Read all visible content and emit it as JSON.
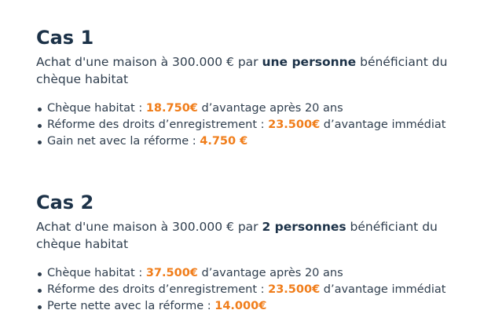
{
  "cases": [
    {
      "title": "Cas 1",
      "desc_before": "Achat d'une maison à 300.000 € par ",
      "desc_bold": "une personne",
      "desc_after": " bénéficiant du chèque habitat",
      "items": [
        {
          "label": "Chèque habitat : ",
          "value": "18.750€",
          "suffix": " d’avantage après 20 ans"
        },
        {
          "label": "Réforme des droits d’enregistrement : ",
          "value": "23.500€",
          "suffix": " d’avantage immédiat"
        },
        {
          "label": "Gain net avec la réforme : ",
          "value": "4.750 €",
          "suffix": ""
        }
      ]
    },
    {
      "title": "Cas 2",
      "desc_before": "Achat d'une maison à 300.000 € par ",
      "desc_bold": "2 personnes",
      "desc_after": " bénéficiant du chèque habitat",
      "items": [
        {
          "label": "Chèque habitat : ",
          "value": "37.500€",
          "suffix": " d’avantage après 20 ans"
        },
        {
          "label": "Réforme des droits d’enregistrement : ",
          "value": "23.500€",
          "suffix": " d’avantage immédiat"
        },
        {
          "label": "Perte nette avec la réforme : ",
          "value": "14.000€",
          "suffix": ""
        }
      ]
    }
  ],
  "colors": {
    "highlight": "#f07d1a",
    "heading": "#1c3248",
    "text": "#2f3e4e"
  }
}
